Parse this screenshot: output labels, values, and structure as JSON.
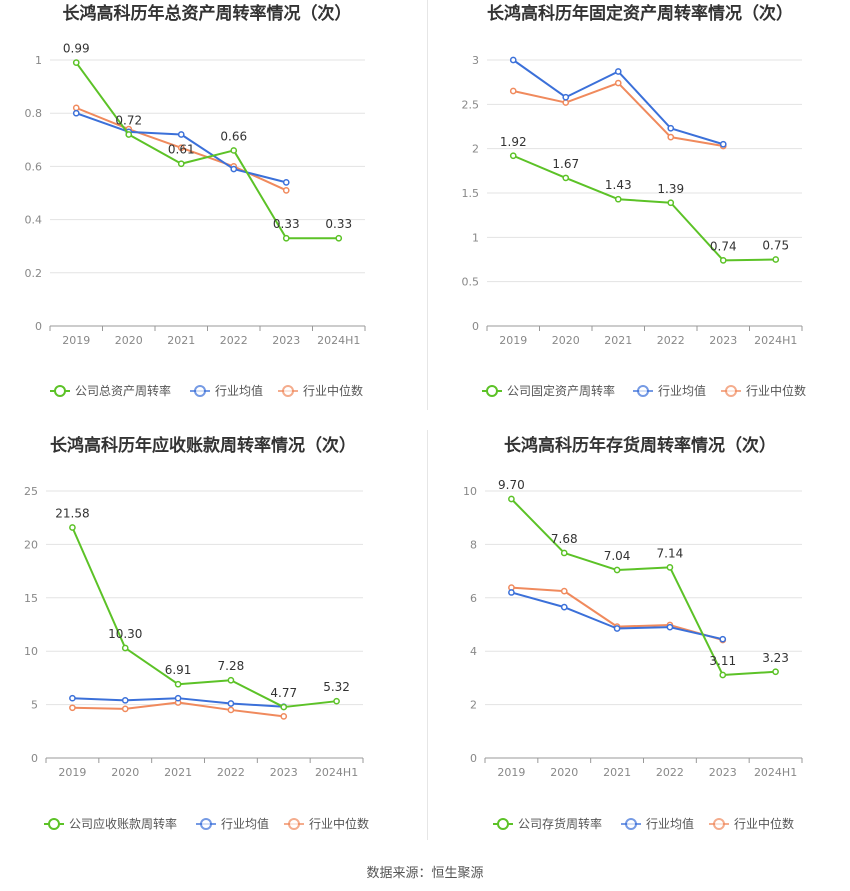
{
  "colors": {
    "company": "#5cc227",
    "avg": "#3b70d9",
    "median": "#f08a5d",
    "grid": "#e3e3e3",
    "axis": "#999999"
  },
  "source": "数据来源：恒生聚源",
  "chart_data": [
    {
      "type": "line",
      "title": "长鸿高科历年总资产周转率情况（次）",
      "categories": [
        "2019",
        "2020",
        "2021",
        "2022",
        "2023",
        "2024H1"
      ],
      "ylim": [
        0,
        1
      ],
      "yticks": [
        0,
        0.2,
        0.4,
        0.6,
        0.8,
        1
      ],
      "ytick_labels": [
        "0",
        "0.2",
        "0.4",
        "0.6",
        "0.8",
        "1"
      ],
      "series": [
        {
          "name": "公司总资产周转率",
          "key": "company",
          "values": [
            0.99,
            0.72,
            0.61,
            0.66,
            0.33,
            0.33
          ],
          "labels": [
            "0.99",
            "0.72",
            "0.61",
            "0.66",
            "0.33",
            "0.33"
          ]
        },
        {
          "name": "行业均值",
          "key": "avg",
          "values": [
            0.8,
            0.73,
            0.72,
            0.59,
            0.54,
            null
          ]
        },
        {
          "name": "行业中位数",
          "key": "median",
          "values": [
            0.82,
            0.74,
            0.67,
            0.6,
            0.51,
            null
          ]
        }
      ]
    },
    {
      "type": "line",
      "title": "长鸿高科历年固定资产周转率情况（次）",
      "categories": [
        "2019",
        "2020",
        "2021",
        "2022",
        "2023",
        "2024H1"
      ],
      "ylim": [
        0,
        3
      ],
      "yticks": [
        0,
        0.5,
        1,
        1.5,
        2,
        2.5,
        3
      ],
      "ytick_labels": [
        "0",
        "0.5",
        "1",
        "1.5",
        "2",
        "2.5",
        "3"
      ],
      "series": [
        {
          "name": "公司固定资产周转率",
          "key": "company",
          "values": [
            1.92,
            1.67,
            1.43,
            1.39,
            0.74,
            0.75
          ],
          "labels": [
            "1.92",
            "1.67",
            "1.43",
            "1.39",
            "0.74",
            "0.75"
          ]
        },
        {
          "name": "行业均值",
          "key": "avg",
          "values": [
            3.0,
            2.58,
            2.87,
            2.23,
            2.05,
            null
          ]
        },
        {
          "name": "行业中位数",
          "key": "median",
          "values": [
            2.65,
            2.52,
            2.74,
            2.13,
            2.03,
            null
          ]
        }
      ]
    },
    {
      "type": "line",
      "title": "长鸿高科历年应收账款周转率情况（次）",
      "categories": [
        "2019",
        "2020",
        "2021",
        "2022",
        "2023",
        "2024H1"
      ],
      "ylim": [
        0,
        25
      ],
      "yticks": [
        0,
        5,
        10,
        15,
        20,
        25
      ],
      "ytick_labels": [
        "0",
        "5",
        "10",
        "15",
        "20",
        "25"
      ],
      "series": [
        {
          "name": "公司应收账款周转率",
          "key": "company",
          "values": [
            21.58,
            10.3,
            6.91,
            7.28,
            4.77,
            5.32
          ],
          "labels": [
            "21.58",
            "10.30",
            "6.91",
            "7.28",
            "4.77",
            "5.32"
          ]
        },
        {
          "name": "行业均值",
          "key": "avg",
          "values": [
            5.6,
            5.4,
            5.6,
            5.1,
            4.8,
            null
          ]
        },
        {
          "name": "行业中位数",
          "key": "median",
          "values": [
            4.7,
            4.6,
            5.2,
            4.5,
            3.9,
            null
          ]
        }
      ]
    },
    {
      "type": "line",
      "title": "长鸿高科历年存货周转率情况（次）",
      "categories": [
        "2019",
        "2020",
        "2021",
        "2022",
        "2023",
        "2024H1"
      ],
      "ylim": [
        0,
        10
      ],
      "yticks": [
        0,
        2,
        4,
        6,
        8,
        10
      ],
      "ytick_labels": [
        "0",
        "2",
        "4",
        "6",
        "8",
        "10"
      ],
      "series": [
        {
          "name": "公司存货周转率",
          "key": "company",
          "values": [
            9.7,
            7.68,
            7.04,
            7.14,
            3.11,
            3.23
          ],
          "labels": [
            "9.70",
            "7.68",
            "7.04",
            "7.14",
            "3.11",
            "3.23"
          ]
        },
        {
          "name": "行业均值",
          "key": "avg",
          "values": [
            6.2,
            5.65,
            4.85,
            4.9,
            4.45,
            null
          ]
        },
        {
          "name": "行业中位数",
          "key": "median",
          "values": [
            6.38,
            6.25,
            4.92,
            4.98,
            4.42,
            null
          ]
        }
      ]
    }
  ]
}
